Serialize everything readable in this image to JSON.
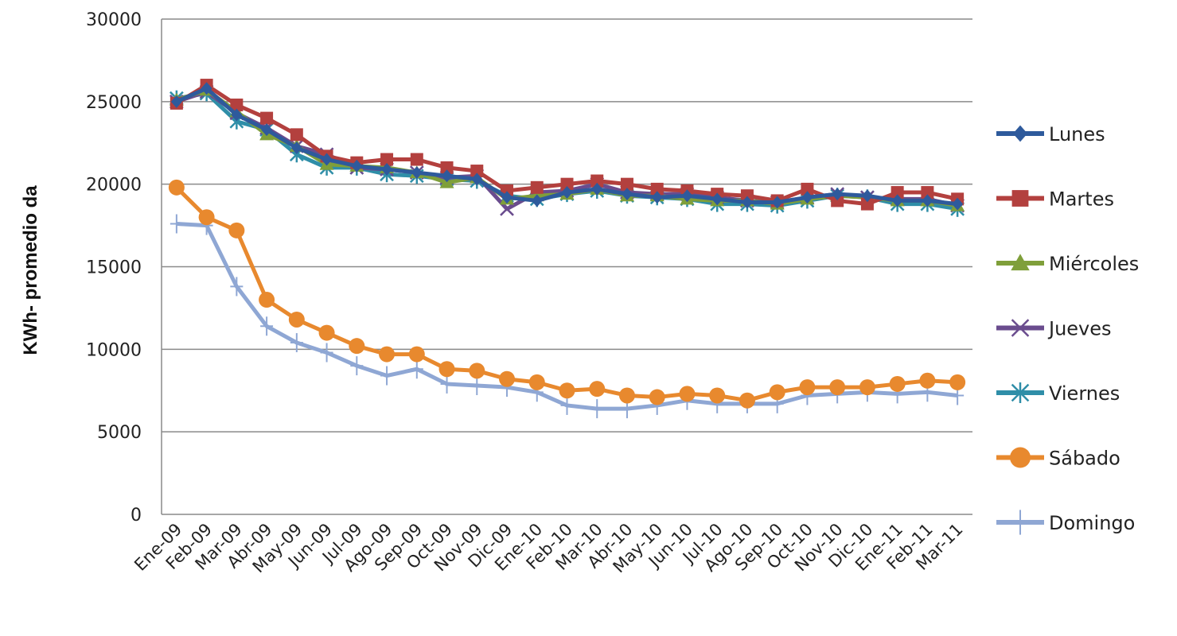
{
  "chart_data": {
    "type": "line",
    "title": "",
    "xlabel": "",
    "ylabel": "KWh- promedio da",
    "ylim": [
      0,
      30000
    ],
    "yticks": [
      0,
      5000,
      10000,
      15000,
      20000,
      25000,
      30000
    ],
    "ytick_labels": [
      "0",
      "5000",
      "10000",
      "15000",
      "20000",
      "25000",
      "30000"
    ],
    "grid": "horizontal",
    "legend_position": "right",
    "categories": [
      "Ene-09",
      "Feb-09",
      "Mar-09",
      "Abr-09",
      "May-09",
      "Jun-09",
      "Jul-09",
      "Ago-09",
      "Sep-09",
      "Oct-09",
      "Nov-09",
      "Dic-09",
      "Ene-10",
      "Feb-10",
      "Mar-10",
      "Abr-10",
      "May-10",
      "Jun-10",
      "Jul-10",
      "Ago-10",
      "Sep-10",
      "Oct-10",
      "Nov-10",
      "Dic-10",
      "Ene-11",
      "Feb-11",
      "Mar-11"
    ],
    "series": [
      {
        "name": "Lunes",
        "color": "#2e5a9c",
        "marker": "diamond",
        "values": [
          25000,
          25800,
          24200,
          23300,
          22200,
          21500,
          21100,
          20900,
          20700,
          20500,
          20300,
          19200,
          19000,
          19500,
          19700,
          19400,
          19200,
          19300,
          19100,
          18900,
          18900,
          19200,
          19400,
          19300,
          19000,
          19000,
          18800
        ]
      },
      {
        "name": "Martes",
        "color": "#b3403e",
        "marker": "square",
        "values": [
          24900,
          26000,
          24800,
          24000,
          23000,
          21700,
          21300,
          21500,
          21500,
          21000,
          20800,
          19600,
          19800,
          20000,
          20200,
          20000,
          19700,
          19600,
          19400,
          19300,
          19000,
          19700,
          19000,
          18800,
          19500,
          19500,
          19100
        ]
      },
      {
        "name": "Miércoles",
        "color": "#7f9f3a",
        "marker": "triangle",
        "values": [
          25100,
          25700,
          24400,
          23000,
          22300,
          21200,
          21100,
          21000,
          20700,
          20100,
          20400,
          19100,
          19300,
          19400,
          19700,
          19300,
          19300,
          19100,
          19000,
          19000,
          18800,
          19100,
          19300,
          19200,
          19000,
          19000,
          18700
        ]
      },
      {
        "name": "Jueves",
        "color": "#6a4c8e",
        "marker": "x",
        "values": [
          25000,
          25600,
          24300,
          23400,
          22300,
          21800,
          21000,
          20900,
          20700,
          20400,
          20500,
          18500,
          19500,
          19600,
          20000,
          19500,
          19400,
          19400,
          19200,
          19000,
          18900,
          19200,
          19400,
          19200,
          19100,
          19100,
          18700
        ]
      },
      {
        "name": "Viernes",
        "color": "#2f8ea8",
        "marker": "star",
        "values": [
          25200,
          25500,
          23800,
          23300,
          21800,
          21000,
          21000,
          20600,
          20500,
          20300,
          20200,
          19300,
          19100,
          19400,
          19600,
          19300,
          19200,
          19100,
          18800,
          18800,
          18700,
          19000,
          19300,
          19200,
          18800,
          18800,
          18500
        ]
      },
      {
        "name": "Sábado",
        "color": "#e8892e",
        "marker": "circle",
        "values": [
          19800,
          18000,
          17200,
          13000,
          11800,
          11000,
          10200,
          9700,
          9700,
          8800,
          8700,
          8200,
          8000,
          7500,
          7600,
          7200,
          7100,
          7300,
          7200,
          6900,
          7400,
          7700,
          7700,
          7700,
          7900,
          8100,
          8000
        ]
      },
      {
        "name": "Domingo",
        "color": "#8fa7d4",
        "marker": "plus",
        "values": [
          17600,
          17500,
          13800,
          11400,
          10400,
          9800,
          9000,
          8400,
          8800,
          7900,
          7800,
          7700,
          7400,
          6600,
          6400,
          6400,
          6600,
          6900,
          6700,
          6700,
          6700,
          7200,
          7300,
          7400,
          7300,
          7400,
          7200
        ]
      }
    ]
  }
}
